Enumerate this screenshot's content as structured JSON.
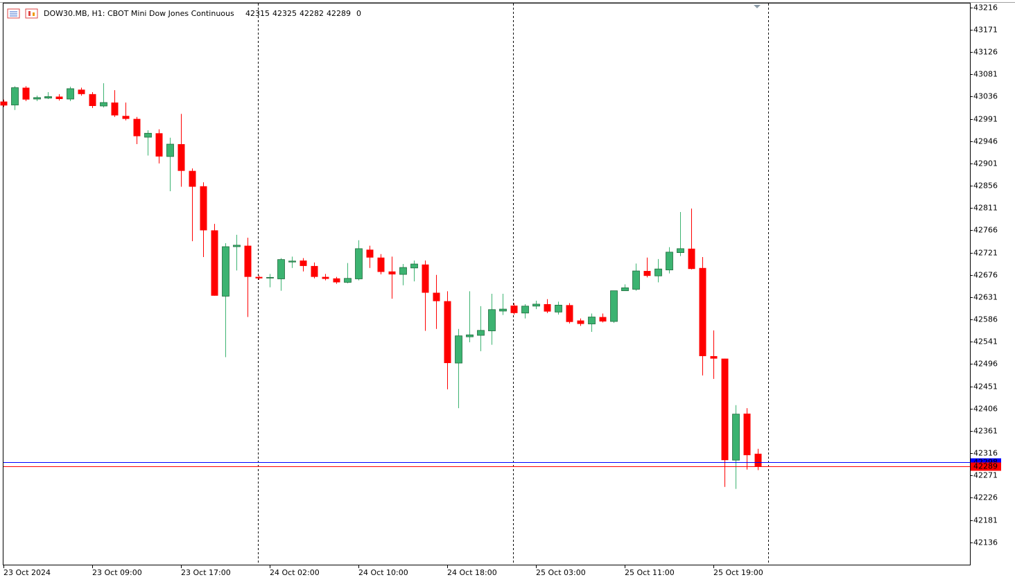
{
  "chart_data": {
    "type": "candlestick",
    "title": "DOW30.MB, H1:  CBOT Mini Dow Jones Continuous",
    "header_values": [
      42315,
      42325,
      42282,
      42289,
      0
    ],
    "categories": [
      "23 Oct 2024",
      null,
      null,
      null,
      null,
      null,
      null,
      null,
      "23 Oct 09:00",
      null,
      null,
      null,
      null,
      null,
      null,
      null,
      "23 Oct 17:00",
      null,
      null,
      null,
      null,
      null,
      null,
      null,
      "24 Oct 02:00",
      null,
      null,
      null,
      null,
      null,
      null,
      null,
      "24 Oct 10:00",
      null,
      null,
      null,
      null,
      null,
      null,
      null,
      "24 Oct 18:00",
      null,
      null,
      null,
      null,
      null,
      null,
      null,
      "25 Oct 03:00",
      null,
      null,
      null,
      null,
      null,
      null,
      null,
      "25 Oct 11:00",
      null,
      null,
      null,
      null,
      null,
      null,
      null,
      "25 Oct 19:00",
      null,
      null,
      null,
      null
    ],
    "open": [
      43026,
      43019,
      43054,
      43031,
      43033,
      43036,
      43031,
      43050,
      43041,
      43017,
      43024,
      42997,
      42991,
      42954,
      42962,
      42915,
      42940,
      42886,
      42855,
      42766,
      42633,
      42733,
      42735,
      42672,
      42670,
      42668,
      42702,
      42705,
      42694,
      42672,
      42669,
      42661,
      42668,
      42727,
      42711,
      42683,
      42677,
      42690,
      42697,
      42640,
      42623,
      42498,
      42551,
      42554,
      42563,
      42603,
      42614,
      42599,
      42613,
      42617,
      42601,
      42615,
      42584,
      42577,
      42591,
      42582,
      42644,
      42647,
      42684,
      42674,
      42686,
      42721,
      42729,
      42690,
      42512,
      42507,
      42302,
      42396,
      42315
    ],
    "high": [
      43030,
      43057,
      43057,
      43038,
      43045,
      43041,
      43056,
      43054,
      43045,
      43063,
      43049,
      43024,
      42995,
      42968,
      42970,
      42953,
      43001,
      42891,
      42863,
      42779,
      42740,
      42757,
      42751,
      42675,
      42678,
      42710,
      42713,
      42710,
      42701,
      42678,
      42672,
      42700,
      42746,
      42735,
      42718,
      42713,
      42698,
      42705,
      42705,
      42676,
      42643,
      42567,
      42643,
      42613,
      42638,
      42638,
      42619,
      42617,
      42624,
      42627,
      42622,
      42619,
      42588,
      42598,
      42598,
      42644,
      42657,
      42699,
      42711,
      42708,
      42732,
      42803,
      42810,
      42712,
      42564,
      42507,
      42413,
      42407,
      42325
    ],
    "low": [
      43015,
      43009,
      43027,
      43027,
      43031,
      43028,
      43027,
      43038,
      43013,
      43014,
      42995,
      42988,
      42940,
      42917,
      42901,
      42845,
      42854,
      42744,
      42712,
      42634,
      42510,
      42685,
      42591,
      42666,
      42651,
      42644,
      42690,
      42683,
      42669,
      42665,
      42658,
      42659,
      42665,
      42690,
      42677,
      42628,
      42655,
      42663,
      42563,
      42567,
      42445,
      42407,
      42540,
      42522,
      42535,
      42595,
      42596,
      42588,
      42607,
      42599,
      42596,
      42578,
      42573,
      42561,
      42580,
      42579,
      42644,
      42644,
      42671,
      42661,
      42679,
      42714,
      42687,
      42473,
      42466,
      42248,
      42244,
      42283,
      42282
    ],
    "close": [
      43018,
      43054,
      43030,
      43034,
      43036,
      43031,
      43052,
      43041,
      43017,
      43024,
      42998,
      42991,
      42956,
      42962,
      42915,
      42940,
      42886,
      42854,
      42766,
      42634,
      42733,
      42736,
      42672,
      42669,
      42671,
      42707,
      42704,
      42694,
      42672,
      42668,
      42661,
      42669,
      42729,
      42711,
      42682,
      42677,
      42691,
      42698,
      42640,
      42623,
      42498,
      42553,
      42555,
      42564,
      42606,
      42607,
      42599,
      42613,
      42617,
      42602,
      42615,
      42581,
      42577,
      42591,
      42582,
      42644,
      42650,
      42684,
      42674,
      42688,
      42722,
      42729,
      42688,
      42512,
      42507,
      42302,
      42395,
      42312,
      42289
    ],
    "up_color": "#3cb371",
    "down_color": "#ff0000",
    "ask": 42298,
    "ask_color": "#0000ff",
    "bid": 42289,
    "bid_color": "#ff0000",
    "ylim": [
      42091,
      43224
    ],
    "yticks": [
      43216,
      43171,
      43126,
      43081,
      43036,
      42991,
      42946,
      42901,
      42856,
      42811,
      42766,
      42721,
      42676,
      42631,
      42586,
      42541,
      42496,
      42451,
      42406,
      42361,
      42316,
      42271,
      42226,
      42181,
      42136
    ]
  }
}
